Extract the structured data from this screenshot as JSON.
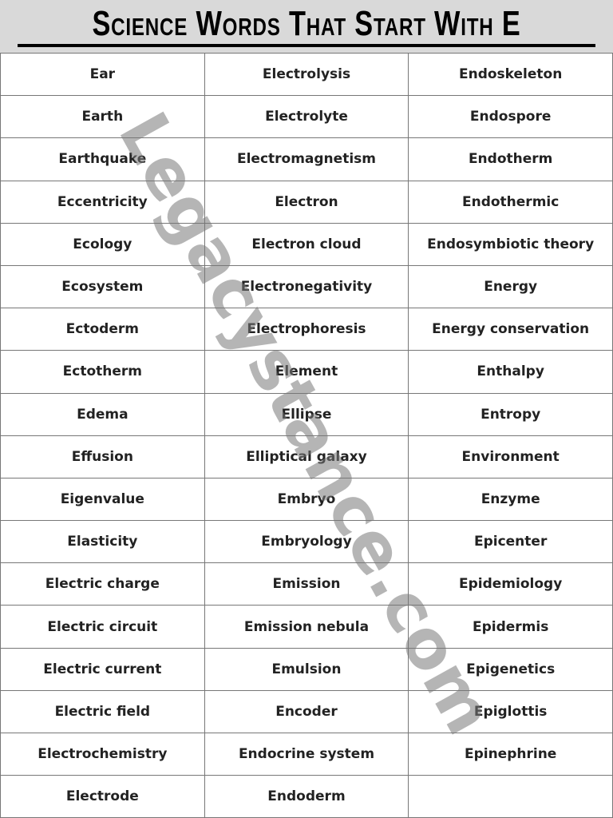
{
  "title": "Science Words That Start With E",
  "watermark": "Legacystance.com",
  "rows": [
    [
      "Ear",
      "Electrolysis",
      "Endoskeleton"
    ],
    [
      "Earth",
      "Electrolyte",
      "Endospore"
    ],
    [
      "Earthquake",
      "Electromagnetism",
      "Endotherm"
    ],
    [
      "Eccentricity",
      "Electron",
      "Endothermic"
    ],
    [
      "Ecology",
      "Electron cloud",
      "Endosymbiotic theory"
    ],
    [
      "Ecosystem",
      "Electronegativity",
      "Energy"
    ],
    [
      "Ectoderm",
      "Electrophoresis",
      "Energy conservation"
    ],
    [
      "Ectotherm",
      "Element",
      "Enthalpy"
    ],
    [
      "Edema",
      "Ellipse",
      "Entropy"
    ],
    [
      "Effusion",
      "Elliptical galaxy",
      "Environment"
    ],
    [
      "Eigenvalue",
      "Embryo",
      "Enzyme"
    ],
    [
      "Elasticity",
      "Embryology",
      "Epicenter"
    ],
    [
      "Electric charge",
      "Emission",
      "Epidemiology"
    ],
    [
      "Electric circuit",
      "Emission nebula",
      "Epidermis"
    ],
    [
      "Electric current",
      "Emulsion",
      "Epigenetics"
    ],
    [
      "Electric field",
      "Encoder",
      "Epiglottis"
    ],
    [
      "Electrochemistry",
      "Endocrine system",
      "Epinephrine"
    ],
    [
      "Electrode",
      "Endoderm",
      ""
    ]
  ]
}
